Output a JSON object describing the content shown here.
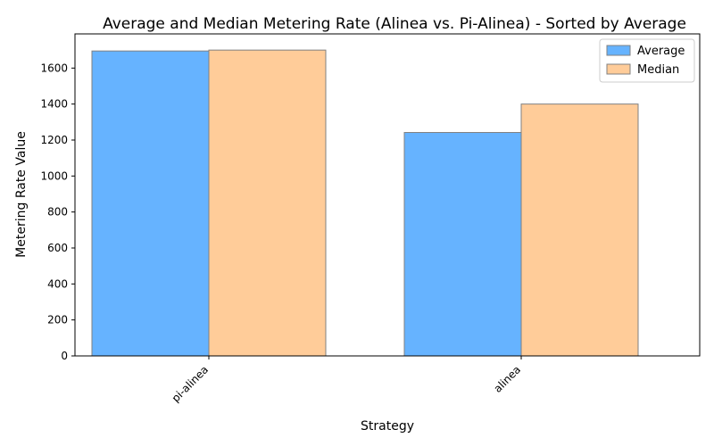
{
  "chart_data": {
    "type": "bar",
    "title": "Average and Median Metering Rate (Alinea vs. Pi-Alinea) - Sorted by Average",
    "xlabel": "Strategy",
    "ylabel": "Metering Rate Value",
    "categories": [
      "pi-alinea",
      "alinea"
    ],
    "series": [
      {
        "name": "Average",
        "values": [
          1695,
          1242
        ],
        "color": "#66b3ff"
      },
      {
        "name": "Median",
        "values": [
          1700,
          1400
        ],
        "color": "#ffcc99"
      }
    ],
    "ylim": [
      0,
      1790
    ],
    "yticks": [
      0,
      200,
      400,
      600,
      800,
      1000,
      1200,
      1400,
      1600
    ],
    "grid": false,
    "legend_position": "top-right",
    "bar_edge_color": "#808080"
  }
}
